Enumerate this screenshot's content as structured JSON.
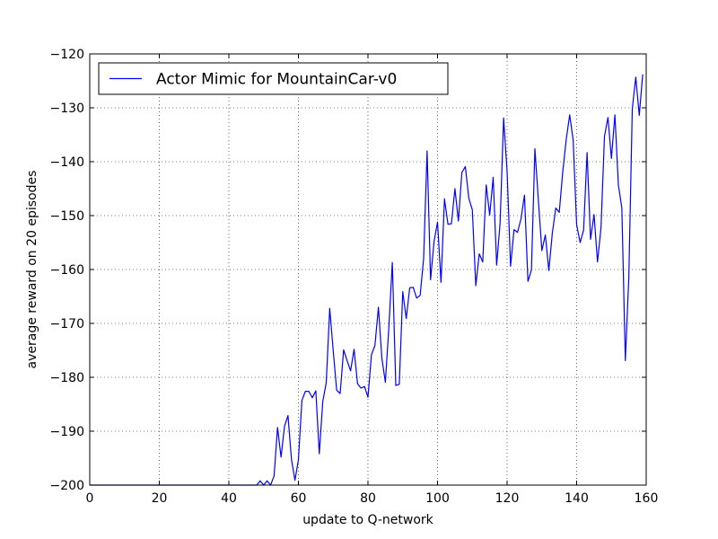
{
  "chart_data": {
    "type": "line",
    "xlabel": "update to Q-network",
    "ylabel": "average reward on 20 episodes",
    "xlim": [
      0,
      160
    ],
    "ylim": [
      -200,
      -120
    ],
    "xticks": [
      0,
      20,
      40,
      60,
      80,
      100,
      120,
      140,
      160
    ],
    "yticks": [
      -200,
      -190,
      -180,
      -170,
      -160,
      -150,
      -140,
      -130,
      -120
    ],
    "xtick_labels": [
      "0",
      "20",
      "40",
      "60",
      "80",
      "100",
      "120",
      "140",
      "160"
    ],
    "ytick_labels": [
      "−200",
      "−190",
      "−180",
      "−170",
      "−160",
      "−150",
      "−140",
      "−130",
      "−120"
    ],
    "grid": true,
    "legend_position": "top-left",
    "series": [
      {
        "name": "Actor Mimic for MountainCar-v0",
        "color": "#0000ff",
        "x": [
          0,
          1,
          2,
          3,
          4,
          5,
          6,
          7,
          8,
          9,
          10,
          11,
          12,
          13,
          14,
          15,
          16,
          17,
          18,
          19,
          20,
          21,
          22,
          23,
          24,
          25,
          26,
          27,
          28,
          29,
          30,
          31,
          32,
          33,
          34,
          35,
          36,
          37,
          38,
          39,
          40,
          41,
          42,
          43,
          44,
          45,
          46,
          47,
          48,
          49,
          50,
          51,
          52,
          53,
          54,
          55,
          56,
          57,
          58,
          59,
          60,
          61,
          62,
          63,
          64,
          65,
          66,
          67,
          68,
          69,
          70,
          71,
          72,
          73,
          74,
          75,
          76,
          77,
          78,
          79,
          80,
          81,
          82,
          83,
          84,
          85,
          86,
          87,
          88,
          89,
          90,
          91,
          92,
          93,
          94,
          95,
          96,
          97,
          98,
          99,
          100,
          101,
          102,
          103,
          104,
          105,
          106,
          107,
          108,
          109,
          110,
          111,
          112,
          113,
          114,
          115,
          116,
          117,
          118,
          119,
          120,
          121,
          122,
          123,
          124,
          125,
          126,
          127,
          128,
          129,
          130,
          131,
          132,
          133,
          134,
          135,
          136,
          137,
          138,
          139,
          140,
          141,
          142,
          143,
          144,
          145,
          146,
          147,
          148,
          149,
          150,
          151,
          152,
          153,
          154,
          155,
          156,
          157,
          158,
          159
        ],
        "y": [
          -200,
          -200,
          -200,
          -200,
          -200,
          -200,
          -200,
          -200,
          -200,
          -200,
          -200,
          -200,
          -200,
          -200,
          -200,
          -200,
          -200,
          -200,
          -200,
          -200,
          -200,
          -200,
          -200,
          -200,
          -200,
          -200,
          -200,
          -200,
          -200,
          -200,
          -200,
          -200,
          -200,
          -200,
          -200,
          -200,
          -200,
          -200,
          -200,
          -200,
          -200,
          -200,
          -200,
          -200,
          -200,
          -200,
          -200,
          -200,
          -200,
          -199.2,
          -200,
          -199.2,
          -200,
          -198.3,
          -189.3,
          -194.8,
          -189.1,
          -187.1,
          -195.2,
          -199.1,
          -195.3,
          -184.3,
          -182.6,
          -182.6,
          -183.8,
          -182.5,
          -194.2,
          -184.5,
          -181.0,
          -167.2,
          -175.0,
          -182.4,
          -183.0,
          -174.9,
          -176.9,
          -178.8,
          -174.8,
          -181.2,
          -182.0,
          -181.7,
          -183.7,
          -175.8,
          -174.1,
          -167.0,
          -176.5,
          -180.9,
          -170.8,
          -158.7,
          -181.5,
          -181.3,
          -164.1,
          -169.1,
          -163.4,
          -163.3,
          -165.3,
          -164.8,
          -158.0,
          -138.0,
          -161.9,
          -154.8,
          -151.2,
          -162.4,
          -146.9,
          -151.6,
          -151.5,
          -145.0,
          -151.0,
          -142.0,
          -140.9,
          -146.8,
          -148.9,
          -163.0,
          -157.1,
          -158.6,
          -144.3,
          -149.9,
          -142.9,
          -159.2,
          -151.3,
          -131.9,
          -141.8,
          -159.4,
          -152.6,
          -153.1,
          -150.6,
          -146.2,
          -162.2,
          -160.1,
          -137.6,
          -147.2,
          -156.5,
          -153.6,
          -160.2,
          -153.3,
          -148.6,
          -149.4,
          -141.9,
          -135.9,
          -131.3,
          -136.0,
          -151.7,
          -155.0,
          -152.7,
          -138.3,
          -154.4,
          -149.8,
          -158.6,
          -152.3,
          -135.3,
          -131.8,
          -139.4,
          -131.3,
          -144.3,
          -148.6,
          -176.9,
          -161.5,
          -130.2,
          -124.3,
          -131.4,
          -123.8
        ]
      }
    ]
  }
}
